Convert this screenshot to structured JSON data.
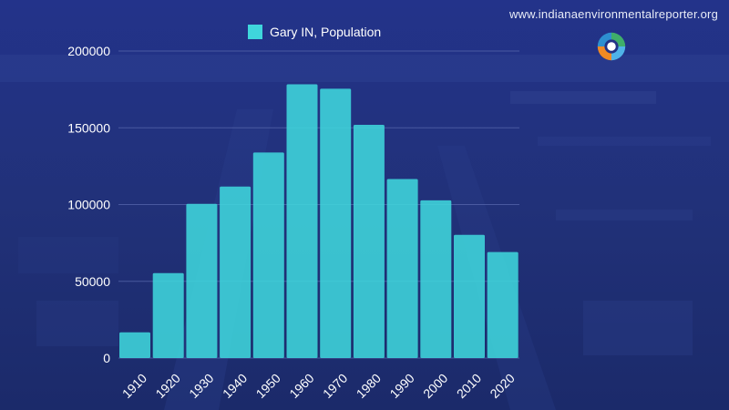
{
  "site": {
    "url": "www.indianaenvironmentalreporter.org"
  },
  "colors": {
    "background": "#1e2f7a",
    "bar": "#3fd6dc",
    "grid": "#5b6bb0",
    "text": "#ffffff"
  },
  "chart_data": {
    "type": "bar",
    "title": "",
    "xlabel": "",
    "ylabel": "",
    "categories": [
      "1910",
      "1920",
      "1930",
      "1940",
      "1950",
      "1960",
      "1970",
      "1980",
      "1990",
      "2000",
      "2010",
      "2020"
    ],
    "series": [
      {
        "name": "Gary IN, Population",
        "values": [
          16802,
          55378,
          100426,
          111719,
          133911,
          178320,
          175415,
          151953,
          116646,
          102746,
          80294,
          69093
        ]
      }
    ],
    "ylim": [
      0,
      200000
    ],
    "yticks": [
      "0",
      "50000",
      "100000",
      "150000",
      "200000"
    ],
    "grid": true,
    "legend_position": "top-center"
  }
}
